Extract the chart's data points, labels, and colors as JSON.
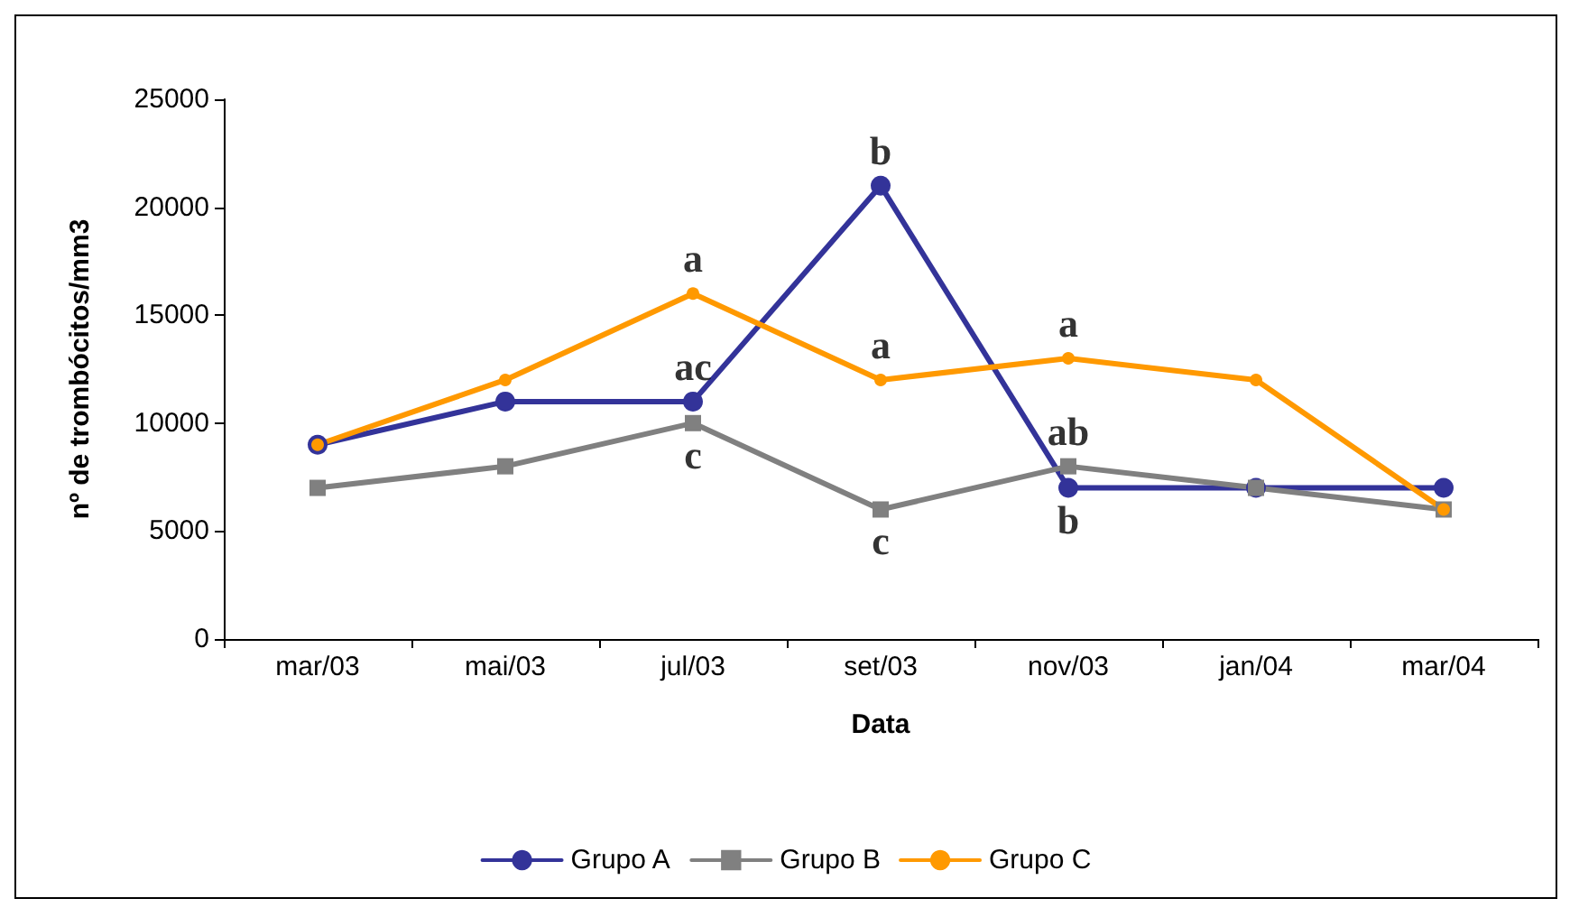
{
  "chart_data": {
    "type": "line",
    "xlabel": "Data",
    "ylabel": "nº de trombócitos/mm3",
    "categories": [
      "mar/03",
      "mai/03",
      "jul/03",
      "set/03",
      "nov/03",
      "jan/04",
      "mar/04"
    ],
    "series": [
      {
        "name": "Grupo A",
        "color": "#333399",
        "marker": "circle",
        "values": [
          9000,
          11000,
          11000,
          21000,
          7000,
          7000,
          7000
        ]
      },
      {
        "name": "Grupo B",
        "color": "#808080",
        "marker": "square",
        "values": [
          7000,
          8000,
          10000,
          6000,
          8000,
          7000,
          6000
        ]
      },
      {
        "name": "Grupo C",
        "color": "#ff9900",
        "marker": "circle",
        "values": [
          9000,
          12000,
          16000,
          12000,
          13000,
          12000,
          6000
        ]
      }
    ],
    "ylim": [
      0,
      25000
    ],
    "yticks": [
      0,
      5000,
      10000,
      15000,
      20000,
      25000
    ],
    "grid": false,
    "legend": "bottom",
    "line_style": "solid",
    "annotations": [
      {
        "text": "b",
        "x": "set/03",
        "y": 21000
      },
      {
        "text": "a",
        "x": "jul/03",
        "y": 16000
      },
      {
        "text": "ac",
        "x": "jul/03",
        "y": 11000
      },
      {
        "text": "c",
        "x": "jul/03",
        "y": 10000
      },
      {
        "text": "a",
        "x": "set/03",
        "y": 12000
      },
      {
        "text": "c",
        "x": "set/03",
        "y": 6000
      },
      {
        "text": "a",
        "x": "nov/03",
        "y": 13000
      },
      {
        "text": "ab",
        "x": "nov/03",
        "y": 8000
      },
      {
        "text": "b",
        "x": "nov/03",
        "y": 7000
      }
    ]
  }
}
